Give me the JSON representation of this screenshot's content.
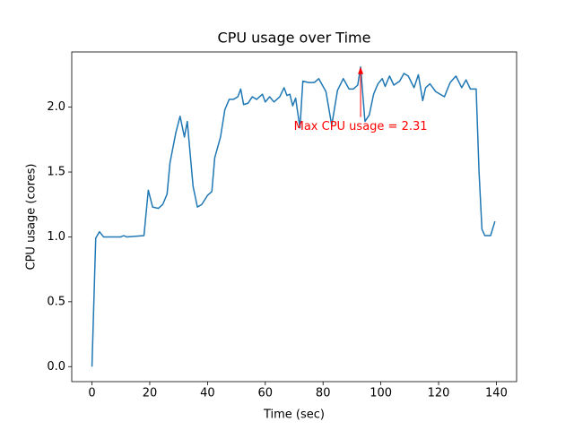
{
  "chart_data": {
    "type": "line",
    "title": "CPU usage over Time",
    "x_label": "Time (sec)",
    "y_label": "CPU usage (cores)",
    "series": [
      {
        "color": "#1f77b4",
        "x": [
          0,
          1.3,
          2.6,
          4,
          10,
          11,
          12,
          18,
          19.5,
          21,
          23,
          24.5,
          26,
          27,
          29,
          30.5,
          32,
          33,
          35,
          36.5,
          38,
          40,
          41.5,
          42.5,
          44.5,
          46,
          47.5,
          49,
          50.5,
          51.5,
          52.5,
          54,
          55.5,
          57,
          59,
          60,
          61.5,
          63,
          65,
          66.5,
          67.5,
          68.5,
          69.5,
          70.5,
          72,
          73,
          75,
          77,
          78.5,
          81,
          83,
          85,
          87,
          89,
          90.5,
          92,
          93,
          94.5,
          96,
          97.5,
          99,
          100.5,
          101.5,
          103,
          104.5,
          106.5,
          108,
          109.5,
          111.5,
          113,
          114.5,
          115.5,
          117,
          119,
          122,
          124,
          126,
          128,
          129.5,
          131,
          133,
          134,
          135,
          136,
          138,
          139.5
        ],
        "values": [
          0,
          0.99,
          1.04,
          1.0,
          1.0,
          1.01,
          1.0,
          1.01,
          1.36,
          1.23,
          1.22,
          1.25,
          1.33,
          1.57,
          1.8,
          1.93,
          1.77,
          1.89,
          1.39,
          1.23,
          1.25,
          1.32,
          1.35,
          1.61,
          1.77,
          1.98,
          2.06,
          2.06,
          2.08,
          2.14,
          2.02,
          2.03,
          2.08,
          2.06,
          2.1,
          2.04,
          2.08,
          2.04,
          2.08,
          2.15,
          2.09,
          2.1,
          2.01,
          2.07,
          1.84,
          2.2,
          2.19,
          2.19,
          2.22,
          2.12,
          1.86,
          2.13,
          2.22,
          2.14,
          2.14,
          2.17,
          2.31,
          1.89,
          1.94,
          2.1,
          2.18,
          2.22,
          2.16,
          2.24,
          2.17,
          2.2,
          2.26,
          2.24,
          2.15,
          2.25,
          2.05,
          2.15,
          2.18,
          2.12,
          2.08,
          2.19,
          2.24,
          2.15,
          2.21,
          2.14,
          2.14,
          1.5,
          1.06,
          1.01,
          1.01,
          1.12
        ]
      }
    ],
    "annotation": {
      "text": "Max CPU usage = 2.31",
      "x": 93,
      "y": 2.31,
      "color": "#ff0000"
    },
    "xlim": [
      -7,
      147
    ],
    "ylim": [
      -0.1155,
      2.4255
    ],
    "xticks": [
      0,
      20,
      40,
      60,
      80,
      100,
      120,
      140
    ],
    "yticks": [
      {
        "value": 0,
        "label": "0.0"
      },
      0.5,
      {
        "value": 1,
        "label": "1.0"
      },
      1.5,
      {
        "value": 2,
        "label": "2.0"
      }
    ]
  }
}
